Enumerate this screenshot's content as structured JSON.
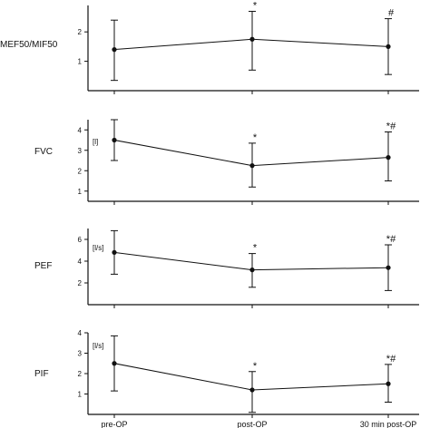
{
  "chart_data": [
    {
      "type": "line",
      "ylabel": "MEF50/MIF50",
      "unit": "",
      "categories": [
        "pre-OP",
        "post-OP",
        "30 min post-OP"
      ],
      "series": [
        {
          "values": [
            1.4,
            1.75,
            1.5
          ],
          "err_low": [
            0.35,
            0.7,
            0.55
          ],
          "err_high": [
            2.4,
            2.7,
            2.45
          ]
        }
      ],
      "annotations": [
        "",
        "*",
        "#"
      ],
      "yticks": [
        1,
        2
      ],
      "ylim": [
        0,
        2.9
      ]
    },
    {
      "type": "line",
      "ylabel": "FVC",
      "unit": "[l]",
      "categories": [
        "pre-OP",
        "post-OP",
        "30 min post-OP"
      ],
      "series": [
        {
          "values": [
            3.5,
            2.25,
            2.65
          ],
          "err_low": [
            2.5,
            1.2,
            1.5
          ],
          "err_high": [
            4.5,
            3.35,
            3.9
          ]
        }
      ],
      "annotations": [
        "",
        "*",
        "*#"
      ],
      "yticks": [
        1,
        2,
        3,
        4
      ],
      "ylim": [
        0.5,
        4.5
      ]
    },
    {
      "type": "line",
      "ylabel": "PEF",
      "unit": "[l/s]",
      "categories": [
        "pre-OP",
        "post-OP",
        "30 min post-OP"
      ],
      "series": [
        {
          "values": [
            4.8,
            3.2,
            3.4
          ],
          "err_low": [
            2.8,
            1.6,
            1.3
          ],
          "err_high": [
            6.8,
            4.7,
            5.5
          ]
        }
      ],
      "annotations": [
        "",
        "*",
        "*#"
      ],
      "yticks": [
        2,
        4,
        6
      ],
      "ylim": [
        0,
        7
      ]
    },
    {
      "type": "line",
      "ylabel": "PIF",
      "unit": "[l/s]",
      "categories": [
        "pre-OP",
        "post-OP",
        "30 min post-OP"
      ],
      "series": [
        {
          "values": [
            2.5,
            1.2,
            1.5
          ],
          "err_low": [
            1.15,
            0.1,
            0.6
          ],
          "err_high": [
            3.85,
            2.1,
            2.45
          ]
        }
      ],
      "annotations": [
        "",
        "*",
        "*#"
      ],
      "yticks": [
        1,
        2,
        3,
        4
      ],
      "ylim": [
        0,
        4
      ]
    }
  ]
}
